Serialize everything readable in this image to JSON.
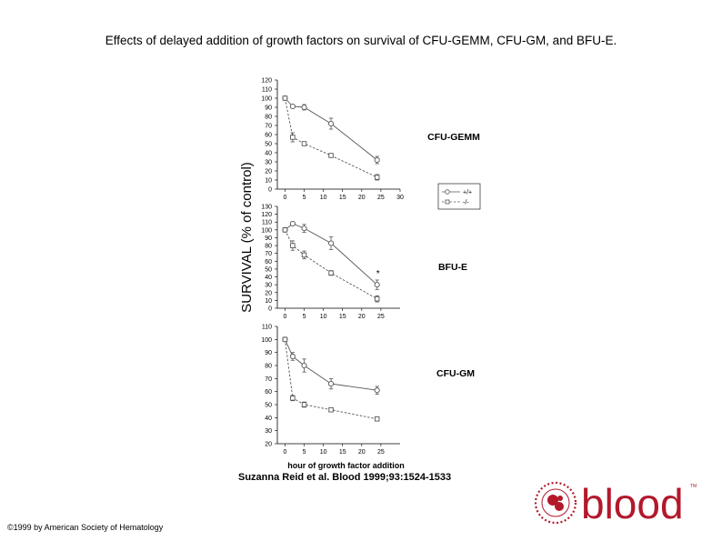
{
  "slide_title": "Effects of delayed addition of growth factors on survival of CFU-GEMM, CFU-GM, and BFU-E.",
  "citation": "Suzanna Reid et al. Blood 1999;93:1524-1533",
  "copyright": "©1999 by American Society of Hematology",
  "logo": {
    "wordmark": "blood",
    "tm": "TM",
    "seal_icon": "ash-seal-icon"
  },
  "colors": {
    "line": "#555555",
    "text": "#000000",
    "logo_red": "#b3182b"
  },
  "chart_data": [
    {
      "type": "line",
      "title": "CFU-GEMM",
      "ylabel": "SURVIVAL (% of control)",
      "xlabel": "",
      "xlim": [
        -2,
        30
      ],
      "ylim": [
        0,
        120
      ],
      "xticks": [
        0,
        5,
        10,
        15,
        20,
        25,
        30
      ],
      "xtick_labels": [
        "0",
        "5",
        "10",
        "15",
        "20",
        "25",
        "30"
      ],
      "yticks": [
        0,
        10,
        20,
        30,
        40,
        50,
        60,
        70,
        80,
        90,
        100,
        110,
        120
      ],
      "ytick_labels": [
        "0",
        "10",
        "20",
        "30",
        "40",
        "50",
        "60",
        "70",
        "80",
        "90",
        "100",
        "110",
        "120"
      ],
      "legend": [
        "+/+",
        "-/-"
      ],
      "legend_position": "right",
      "series": [
        {
          "name": "+/+",
          "marker": "circle",
          "style": "solid",
          "x": [
            0,
            2,
            5,
            12,
            24
          ],
          "y": [
            100,
            91,
            90,
            72,
            32
          ],
          "err": [
            0,
            2,
            3,
            6,
            4
          ]
        },
        {
          "name": "-/-",
          "marker": "square",
          "style": "dashed",
          "x": [
            0,
            2,
            5,
            12,
            24
          ],
          "y": [
            100,
            57,
            50,
            37,
            13
          ],
          "err": [
            0,
            5,
            2,
            2,
            3
          ]
        }
      ],
      "annotations": []
    },
    {
      "type": "line",
      "title": "BFU-E",
      "xlabel": "",
      "xlim": [
        -2,
        30
      ],
      "ylim": [
        0,
        130
      ],
      "xticks": [
        0,
        5,
        10,
        15,
        20,
        25
      ],
      "xtick_labels": [
        "0",
        "5",
        "10",
        "15",
        "20",
        "25"
      ],
      "yticks": [
        0,
        10,
        20,
        30,
        40,
        50,
        60,
        70,
        80,
        90,
        100,
        110,
        120,
        130
      ],
      "ytick_labels": [
        "0",
        "10",
        "20",
        "30",
        "40",
        "50",
        "60",
        "70",
        "80",
        "90",
        "100",
        "110",
        "120",
        "130"
      ],
      "series": [
        {
          "name": "+/+",
          "marker": "circle",
          "style": "solid",
          "x": [
            0,
            2,
            5,
            12,
            24
          ],
          "y": [
            100,
            108,
            102,
            83,
            30
          ],
          "err": [
            0,
            2,
            5,
            8,
            6
          ]
        },
        {
          "name": "-/-",
          "marker": "square",
          "style": "dashed",
          "x": [
            0,
            2,
            5,
            12,
            24
          ],
          "y": [
            100,
            80,
            68,
            45,
            12
          ],
          "err": [
            0,
            6,
            5,
            3,
            4
          ]
        }
      ],
      "annotations": [
        {
          "text": "*",
          "x": 24,
          "y": 45
        }
      ]
    },
    {
      "type": "line",
      "title": "CFU-GM",
      "xlabel": "hour of growth factor addition",
      "xlim": [
        -2,
        30
      ],
      "ylim": [
        20,
        110
      ],
      "xticks": [
        0,
        5,
        10,
        15,
        20,
        25
      ],
      "xtick_labels": [
        "0",
        "5",
        "10",
        "15",
        "20",
        "25"
      ],
      "yticks": [
        20,
        30,
        40,
        50,
        60,
        70,
        80,
        90,
        100,
        110
      ],
      "ytick_labels": [
        "20",
        "30",
        "40",
        "50",
        "60",
        "70",
        "80",
        "90",
        "100",
        "110"
      ],
      "series": [
        {
          "name": "+/+",
          "marker": "circle",
          "style": "solid",
          "x": [
            0,
            2,
            5,
            12,
            24
          ],
          "y": [
            100,
            87,
            80,
            66,
            61
          ],
          "err": [
            0,
            3,
            5,
            4,
            3
          ]
        },
        {
          "name": "-/-",
          "marker": "square",
          "style": "dashed",
          "x": [
            0,
            2,
            5,
            12,
            24
          ],
          "y": [
            100,
            55,
            50,
            46,
            39
          ],
          "err": [
            0,
            2,
            2,
            1,
            1
          ]
        }
      ],
      "annotations": []
    }
  ]
}
